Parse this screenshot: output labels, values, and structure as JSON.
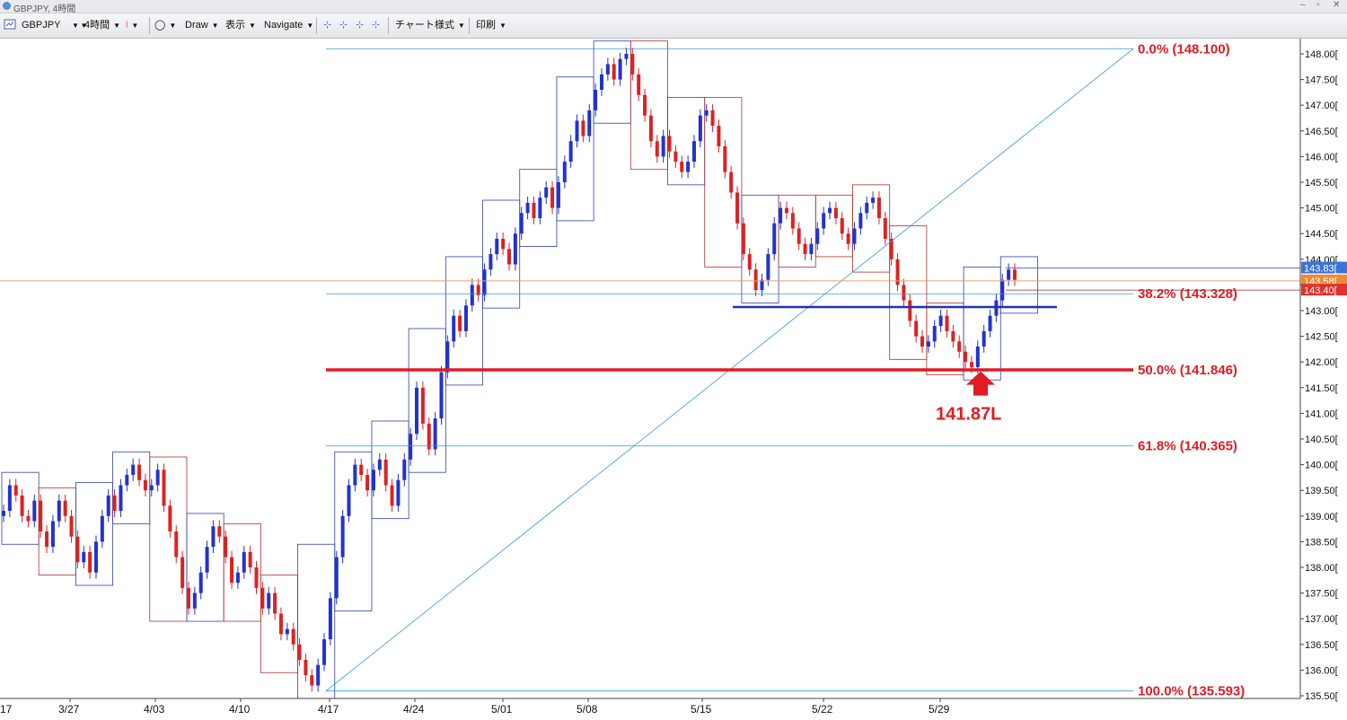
{
  "window": {
    "title": "GBPJPY, 4時間"
  },
  "toolbar": {
    "symbol": "GBPJPY",
    "timeframe": "4時間",
    "draw_label": "Draw",
    "view_label": "表示",
    "navigate_label": "Navigate",
    "chart_style_label": "チャート様式",
    "print_label": "印刷"
  },
  "chart_data": {
    "type": "candlestick",
    "symbol": "GBPJPY",
    "timeframe": "4時間",
    "x_dates": [
      "3/27",
      "4/03",
      "4/10",
      "4/17",
      "4/24",
      "5/01",
      "5/08",
      "5/15",
      "5/22",
      "5/29"
    ],
    "x_first_partial": "17",
    "ylim": [
      135.5,
      148.2
    ],
    "y_ticks": [
      "148.00",
      "147.50",
      "147.00",
      "146.50",
      "146.00",
      "145.50",
      "145.00",
      "144.50",
      "144.00",
      "143.50",
      "143.00",
      "142.50",
      "142.00",
      "141.50",
      "141.00",
      "140.50",
      "140.00",
      "139.50",
      "139.00",
      "138.50",
      "138.00",
      "137.50",
      "137.00",
      "136.50",
      "136.00",
      "135.50"
    ],
    "fibonacci": {
      "levels": [
        {
          "label": "0.0%",
          "value_text": "(148.100)",
          "price": 148.1,
          "color": "#e21b22"
        },
        {
          "label": "38.2%",
          "value_text": "(143.328)",
          "price": 143.328,
          "color": "#e21b22"
        },
        {
          "label": "50.0%",
          "value_text": "(141.846)",
          "price": 141.846,
          "color": "#e21b22"
        },
        {
          "label": "61.8%",
          "value_text": "(140.365)",
          "price": 140.365,
          "color": "#e21b22"
        },
        {
          "label": "100.0%",
          "value_text": "(135.593)",
          "price": 135.593,
          "color": "#e21b22"
        }
      ]
    },
    "horizontal_lines": [
      {
        "price": 141.846,
        "color": "#e21b22",
        "style": "thick"
      },
      {
        "price": 143.07,
        "color": "#2430b8",
        "style": "medium"
      },
      {
        "price": 143.58,
        "color": "#f0a060",
        "style": "thin"
      }
    ],
    "price_badges": [
      {
        "text": "143.83",
        "price": 143.83,
        "color": "#3b74d8"
      },
      {
        "text": "143.58",
        "price": 143.58,
        "color": "#f08a30"
      },
      {
        "text": "143.40",
        "price": 143.4,
        "color": "#e23030"
      }
    ],
    "annotation": {
      "text": "141.87L",
      "price": 141.87,
      "color": "#e21b22"
    },
    "candles_close": [
      139.1,
      139.6,
      139.4,
      139.0,
      138.9,
      139.3,
      138.7,
      138.4,
      138.9,
      139.3,
      139.0,
      138.6,
      138.1,
      138.3,
      137.9,
      138.5,
      139.0,
      139.4,
      139.1,
      139.6,
      139.8,
      140.0,
      139.7,
      139.5,
      139.6,
      139.9,
      139.2,
      138.7,
      138.2,
      137.6,
      137.2,
      137.5,
      137.9,
      138.4,
      138.8,
      138.6,
      138.2,
      137.7,
      137.9,
      138.3,
      138.0,
      137.6,
      137.2,
      137.5,
      137.1,
      136.7,
      136.8,
      136.5,
      136.2,
      135.9,
      135.7,
      136.1,
      136.6,
      137.4,
      138.2,
      139.0,
      139.6,
      140.0,
      139.8,
      139.5,
      139.9,
      140.1,
      139.6,
      139.2,
      139.7,
      140.1,
      140.6,
      141.5,
      140.8,
      140.3,
      140.9,
      141.8,
      142.4,
      142.9,
      142.6,
      143.1,
      143.5,
      143.3,
      143.8,
      144.1,
      144.4,
      144.2,
      143.9,
      144.5,
      144.9,
      145.1,
      144.8,
      145.2,
      145.4,
      145.0,
      145.5,
      145.9,
      146.3,
      146.7,
      146.4,
      146.9,
      147.3,
      147.6,
      147.8,
      147.5,
      147.9,
      148.0,
      147.6,
      147.2,
      146.8,
      146.3,
      146.0,
      146.4,
      146.1,
      145.9,
      145.7,
      145.9,
      146.3,
      146.8,
      146.9,
      146.6,
      146.2,
      145.7,
      145.3,
      144.7,
      144.1,
      143.8,
      143.4,
      143.6,
      144.1,
      144.7,
      145.0,
      144.9,
      144.6,
      144.3,
      144.1,
      144.3,
      144.6,
      144.9,
      145.0,
      144.8,
      144.5,
      144.3,
      144.6,
      144.9,
      145.1,
      145.2,
      144.8,
      144.4,
      144.0,
      143.5,
      143.2,
      142.8,
      142.5,
      142.3,
      142.4,
      142.7,
      142.9,
      142.6,
      142.4,
      142.2,
      142.0,
      141.9,
      142.3,
      142.6,
      142.9,
      143.2,
      143.6,
      143.8,
      143.6
    ]
  }
}
